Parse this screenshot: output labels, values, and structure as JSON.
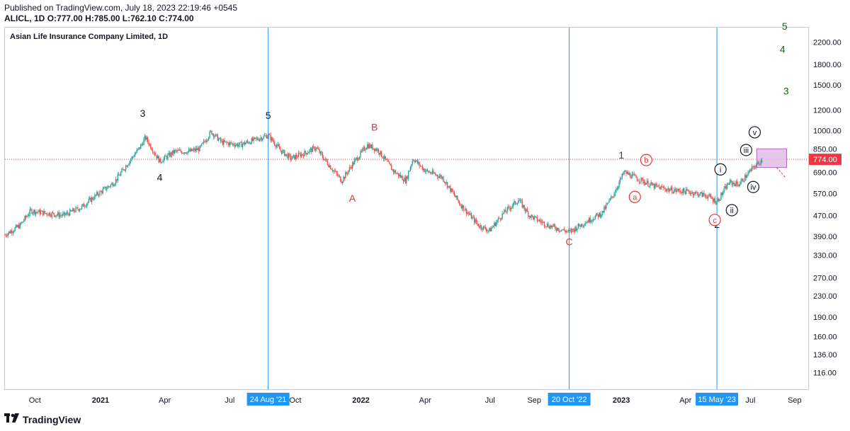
{
  "header": {
    "published": "Published on TradingView.com, July 18, 2023 22:19:46 +0545",
    "symbol": "ALICL, 1D",
    "o_label": "O:",
    "o": "777.00",
    "h_label": "H:",
    "h": "785.00",
    "l_label": "L:",
    "l": "762.10",
    "c_label": "C:",
    "c": "774.00"
  },
  "brand": {
    "name": "TradingView",
    "logo_icon": "tradingview-logo-icon"
  },
  "colors": {
    "up": "#26a69a",
    "down": "#ef5350",
    "vline": "#2196f3",
    "price_line": "#f23645",
    "green_label": "#1b5e20",
    "red_label": "#e53935",
    "box": "#e1bee7"
  },
  "chart_data": {
    "type": "candlestick",
    "title": "Asian Life Insurance Company Limited, 1D",
    "last_price": "774.00",
    "y_scale": "log",
    "ylim": [
      100,
      2500
    ],
    "xlim": [
      "2020-08-20",
      "2023-09-20"
    ],
    "y_ticks": [
      "2200.00",
      "1800.00",
      "1500.00",
      "1200.00",
      "1000.00",
      "850.00",
      "774.00",
      "690.00",
      "570.00",
      "470.00",
      "390.00",
      "330.00",
      "270.00",
      "230.00",
      "190.00",
      "160.00",
      "136.00",
      "116.00"
    ],
    "y_tick_values": [
      2200,
      1800,
      1500,
      1200,
      1000,
      850,
      690,
      570,
      470,
      390,
      330,
      270,
      230,
      190,
      160,
      136,
      116
    ],
    "x_ticks": [
      {
        "label": "Oct",
        "date": "2020-10-01",
        "bold": false
      },
      {
        "label": "2021",
        "date": "2021-01-01",
        "bold": true
      },
      {
        "label": "Apr",
        "date": "2021-04-01",
        "bold": false
      },
      {
        "label": "Jul",
        "date": "2021-07-01",
        "bold": false
      },
      {
        "label": "Oct",
        "date": "2021-10-01",
        "bold": false
      },
      {
        "label": "2022",
        "date": "2022-01-01",
        "bold": true
      },
      {
        "label": "Apr",
        "date": "2022-04-01",
        "bold": false
      },
      {
        "label": "Jul",
        "date": "2022-07-01",
        "bold": false
      },
      {
        "label": "Sep",
        "date": "2022-09-01",
        "bold": false
      },
      {
        "label": "2023",
        "date": "2023-01-01",
        "bold": true
      },
      {
        "label": "Apr",
        "date": "2023-04-01",
        "bold": false
      },
      {
        "label": "Jul",
        "date": "2023-07-01",
        "bold": false
      },
      {
        "label": "Sep",
        "date": "2023-09-01",
        "bold": false
      }
    ],
    "vertical_markers": [
      {
        "label": "24 Aug '21",
        "date": "2021-08-24"
      },
      {
        "label": "20 Oct '22",
        "date": "2022-10-20"
      },
      {
        "label": "15 May '23",
        "date": "2023-05-15"
      }
    ],
    "price_path": [
      {
        "date": "2020-08-20",
        "close": 395
      },
      {
        "date": "2020-09-10",
        "close": 430
      },
      {
        "date": "2020-09-25",
        "close": 490
      },
      {
        "date": "2020-10-15",
        "close": 480
      },
      {
        "date": "2020-11-10",
        "close": 470
      },
      {
        "date": "2020-12-05",
        "close": 505
      },
      {
        "date": "2020-12-25",
        "close": 560
      },
      {
        "date": "2021-01-20",
        "close": 630
      },
      {
        "date": "2021-02-10",
        "close": 760
      },
      {
        "date": "2021-02-25",
        "close": 860
      },
      {
        "date": "2021-03-05",
        "close": 940
      },
      {
        "date": "2021-03-25",
        "close": 760
      },
      {
        "date": "2021-04-15",
        "close": 830
      },
      {
        "date": "2021-05-05",
        "close": 830
      },
      {
        "date": "2021-05-20",
        "close": 850
      },
      {
        "date": "2021-06-05",
        "close": 990
      },
      {
        "date": "2021-06-20",
        "close": 900
      },
      {
        "date": "2021-07-15",
        "close": 880
      },
      {
        "date": "2021-08-05",
        "close": 920
      },
      {
        "date": "2021-08-24",
        "close": 960
      },
      {
        "date": "2021-09-10",
        "close": 840
      },
      {
        "date": "2021-09-25",
        "close": 780
      },
      {
        "date": "2021-10-15",
        "close": 820
      },
      {
        "date": "2021-10-30",
        "close": 860
      },
      {
        "date": "2021-11-10",
        "close": 780
      },
      {
        "date": "2021-12-05",
        "close": 640
      },
      {
        "date": "2021-12-20",
        "close": 740
      },
      {
        "date": "2022-01-10",
        "close": 880
      },
      {
        "date": "2022-01-25",
        "close": 840
      },
      {
        "date": "2022-02-15",
        "close": 700
      },
      {
        "date": "2022-03-05",
        "close": 640
      },
      {
        "date": "2022-03-15",
        "close": 780
      },
      {
        "date": "2022-04-01",
        "close": 700
      },
      {
        "date": "2022-04-25",
        "close": 660
      },
      {
        "date": "2022-05-20",
        "close": 520
      },
      {
        "date": "2022-06-15",
        "close": 430
      },
      {
        "date": "2022-06-30",
        "close": 410
      },
      {
        "date": "2022-07-20",
        "close": 480
      },
      {
        "date": "2022-08-10",
        "close": 540
      },
      {
        "date": "2022-08-25",
        "close": 470
      },
      {
        "date": "2022-09-20",
        "close": 430
      },
      {
        "date": "2022-10-20",
        "close": 405
      },
      {
        "date": "2022-11-10",
        "close": 440
      },
      {
        "date": "2022-12-05",
        "close": 480
      },
      {
        "date": "2022-12-20",
        "close": 560
      },
      {
        "date": "2023-01-05",
        "close": 690
      },
      {
        "date": "2023-01-25",
        "close": 650
      },
      {
        "date": "2023-02-15",
        "close": 610
      },
      {
        "date": "2023-03-10",
        "close": 590
      },
      {
        "date": "2023-04-05",
        "close": 580
      },
      {
        "date": "2023-05-01",
        "close": 560
      },
      {
        "date": "2023-05-15",
        "close": 530
      },
      {
        "date": "2023-06-01",
        "close": 630
      },
      {
        "date": "2023-06-15",
        "close": 620
      },
      {
        "date": "2023-07-05",
        "close": 720
      },
      {
        "date": "2023-07-18",
        "close": 774
      }
    ],
    "annotations": [
      {
        "text": "3",
        "date": "2021-03-01",
        "price": 1130,
        "color": "black",
        "circled": false
      },
      {
        "text": "4",
        "date": "2021-03-25",
        "price": 640,
        "color": "black",
        "circled": false
      },
      {
        "text": "5",
        "date": "2021-08-24",
        "price": 1110,
        "color": "black",
        "circled": false
      },
      {
        "text": "A",
        "date": "2021-12-20",
        "price": 530,
        "color": "red",
        "circled": false
      },
      {
        "text": "B",
        "date": "2022-01-20",
        "price": 1000,
        "color": "red",
        "circled": false
      },
      {
        "text": "C",
        "date": "2022-10-20",
        "price": 360,
        "color": "red",
        "circled": false
      },
      {
        "text": "1",
        "date": "2023-01-01",
        "price": 780,
        "color": "green",
        "circled": false
      },
      {
        "text": "2",
        "date": "2023-05-15",
        "price": 420,
        "color": "black",
        "circled": false
      },
      {
        "text": "3",
        "date": "2023-08-20",
        "price": 1380,
        "color": "green",
        "circled": false
      },
      {
        "text": "4",
        "date": "2023-08-15",
        "price": 2000,
        "color": "green",
        "circled": false
      },
      {
        "text": "5",
        "date": "2023-08-18",
        "price": 2450,
        "color": "green",
        "circled": false
      },
      {
        "text": "a",
        "date": "2023-01-20",
        "price": 540,
        "color": "red",
        "circled": true
      },
      {
        "text": "b",
        "date": "2023-02-05",
        "price": 750,
        "color": "red",
        "circled": true
      },
      {
        "text": "c",
        "date": "2023-05-12",
        "price": 440,
        "color": "red",
        "circled": true
      },
      {
        "text": "i",
        "date": "2023-05-20",
        "price": 690,
        "color": "black",
        "circled": true
      },
      {
        "text": "ii",
        "date": "2023-06-05",
        "price": 480,
        "color": "black",
        "circled": true
      },
      {
        "text": "iii",
        "date": "2023-06-25",
        "price": 820,
        "color": "black",
        "circled": true
      },
      {
        "text": "iv",
        "date": "2023-07-05",
        "price": 590,
        "color": "black",
        "circled": true
      },
      {
        "text": "v",
        "date": "2023-07-07",
        "price": 960,
        "color": "black",
        "circled": true
      }
    ]
  }
}
